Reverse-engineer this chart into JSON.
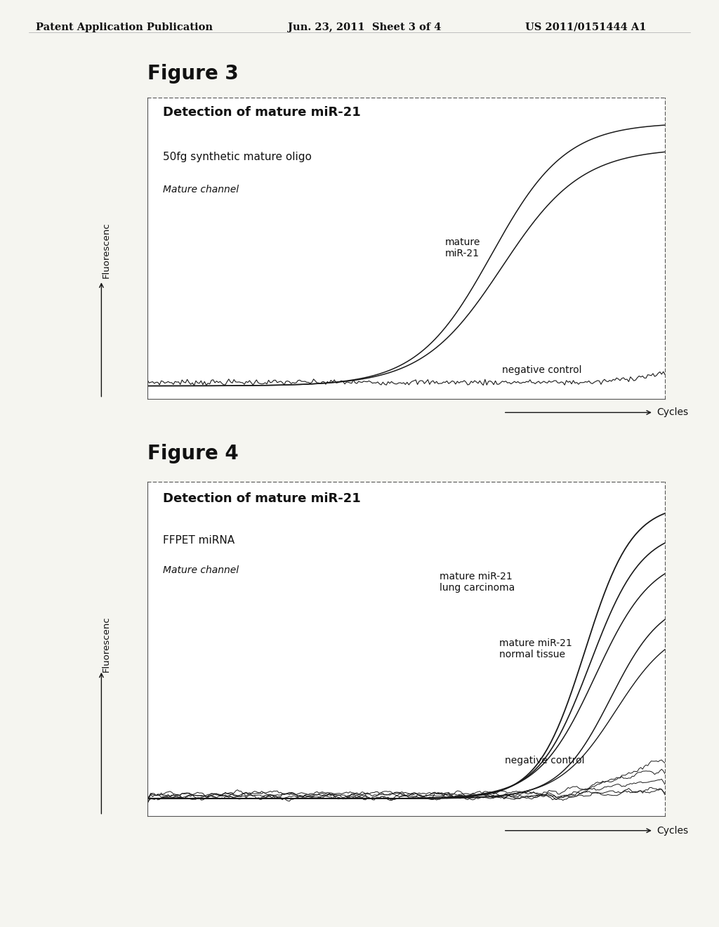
{
  "background_color": "#f5f5f0",
  "header_text": "Patent Application Publication",
  "header_date": "Jun. 23, 2011  Sheet 3 of 4",
  "header_patent": "US 2011/0151444 A1",
  "fig3_title": "Figure 3",
  "fig3_box_title_bold": "Detection of mature miR-21",
  "fig3_box_line2": "50fg synthetic mature oligo",
  "fig3_box_line3_italic": "Mature channel",
  "fig3_ylabel": "Fluorescenc",
  "fig3_xlabel": "→Cycles",
  "fig3_label_mature": "mature\nmiR-21",
  "fig3_label_neg": "negative control",
  "fig4_title": "Figure 4",
  "fig4_box_title_bold": "Detection of mature miR-21",
  "fig4_box_line2": "FFPET miRNA",
  "fig4_box_line3_italic": "Mature channel",
  "fig4_ylabel": "Fluorescenc",
  "fig4_xlabel": "→Cycles",
  "fig4_label_lung": "mature miR-21\nlung carcinoma",
  "fig4_label_normal": "mature miR-21\nnormal tissue",
  "fig4_label_neg": "negative control",
  "line_color": "#1a1a1a",
  "fig_title_fontsize": 20,
  "header_fontsize": 10.5,
  "inplot_title_fontsize": 13,
  "inplot_line2_fontsize": 11,
  "inplot_line3_fontsize": 10,
  "label_fontsize": 10
}
